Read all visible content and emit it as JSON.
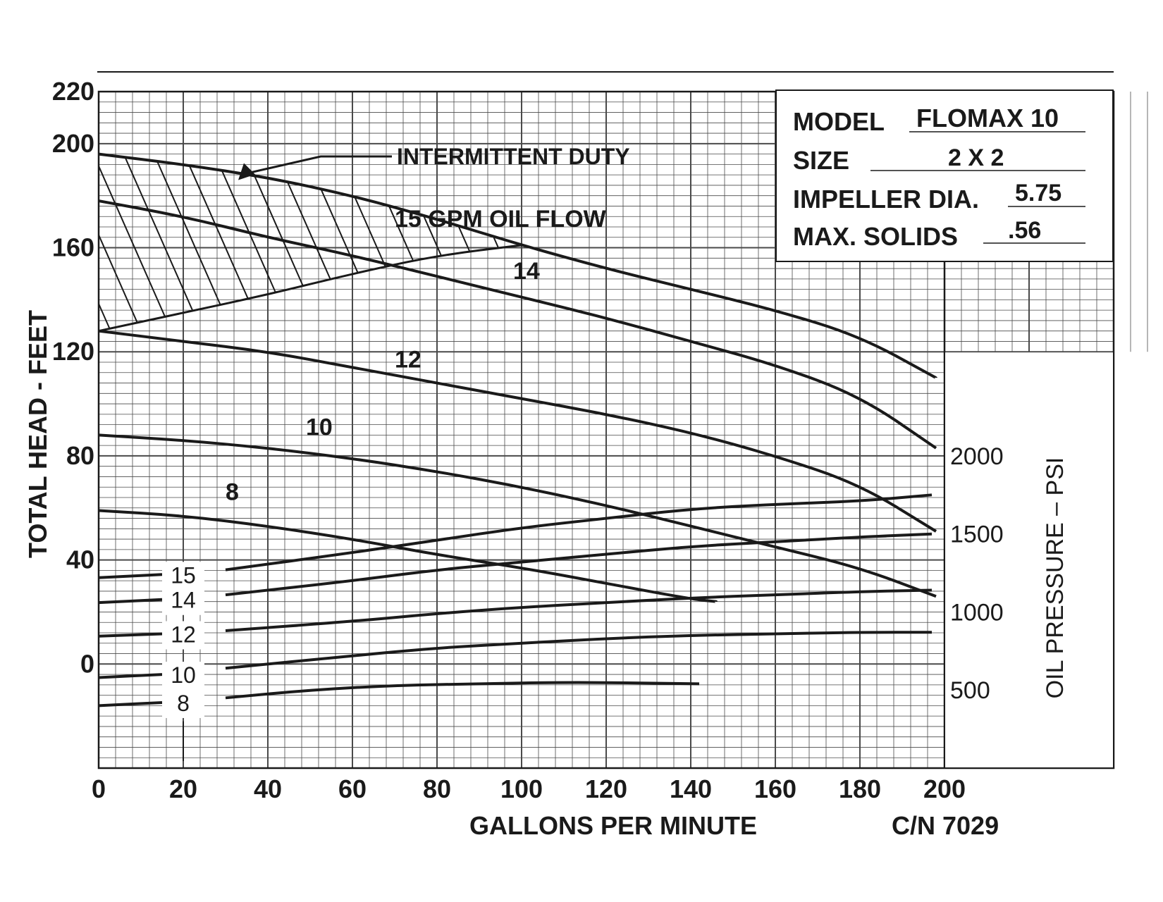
{
  "chart_data": {
    "type": "line",
    "xlabel": "GALLONS PER MINUTE",
    "ylabel": "TOTAL HEAD - FEET",
    "y2label": "OIL PRESSURE – PSI",
    "xlim": [
      0,
      200
    ],
    "ylim": [
      -40,
      220
    ],
    "y2lim": [
      0,
      2500
    ],
    "x_ticks": [
      "0",
      "20",
      "40",
      "60",
      "80",
      "100",
      "120",
      "140",
      "160",
      "180",
      "200"
    ],
    "y_ticks": [
      {
        "value": 0,
        "label": "0"
      },
      {
        "value": 40,
        "label": "40"
      },
      {
        "value": 80,
        "label": "80"
      },
      {
        "value": 120,
        "label": "120"
      },
      {
        "value": 160,
        "label": "160"
      },
      {
        "value": 200,
        "label": "200"
      },
      {
        "value": 220,
        "label": "220"
      }
    ],
    "y2_ticks": [
      {
        "value": 500,
        "label": "500"
      },
      {
        "value": 1000,
        "label": "1000"
      },
      {
        "value": 1500,
        "label": "1500"
      },
      {
        "value": 2000,
        "label": "2000"
      }
    ],
    "grid": true,
    "head_series": [
      {
        "name": "15 GPM OIL FLOW",
        "label_x": 70,
        "label_y": 168,
        "points": [
          [
            0,
            196
          ],
          [
            20,
            192
          ],
          [
            40,
            187
          ],
          [
            60,
            180
          ],
          [
            80,
            171
          ],
          [
            100,
            161
          ],
          [
            120,
            152
          ],
          [
            140,
            144
          ],
          [
            160,
            136
          ],
          [
            180,
            126
          ],
          [
            198,
            110
          ]
        ]
      },
      {
        "name": "14",
        "label_x": 98,
        "label_y": 148,
        "points": [
          [
            0,
            178
          ],
          [
            20,
            172
          ],
          [
            40,
            164
          ],
          [
            60,
            157
          ],
          [
            80,
            149
          ],
          [
            100,
            141
          ],
          [
            120,
            133
          ],
          [
            140,
            124
          ],
          [
            160,
            115
          ],
          [
            180,
            103
          ],
          [
            198,
            83
          ]
        ]
      },
      {
        "name": "12",
        "label_x": 70,
        "label_y": 114,
        "points": [
          [
            0,
            128
          ],
          [
            20,
            124
          ],
          [
            40,
            120
          ],
          [
            60,
            114
          ],
          [
            80,
            108
          ],
          [
            100,
            102
          ],
          [
            120,
            96
          ],
          [
            140,
            89
          ],
          [
            160,
            80
          ],
          [
            180,
            69
          ],
          [
            198,
            51
          ]
        ]
      },
      {
        "name": "10",
        "label_x": 49,
        "label_y": 88,
        "points": [
          [
            0,
            88
          ],
          [
            20,
            86
          ],
          [
            40,
            83
          ],
          [
            60,
            79
          ],
          [
            80,
            74
          ],
          [
            100,
            68
          ],
          [
            120,
            61
          ],
          [
            140,
            53
          ],
          [
            160,
            45
          ],
          [
            180,
            37
          ],
          [
            198,
            26
          ]
        ]
      },
      {
        "name": "8",
        "label_x": 30,
        "label_y": 63,
        "points": [
          [
            0,
            59
          ],
          [
            20,
            57
          ],
          [
            40,
            53
          ],
          [
            60,
            48
          ],
          [
            80,
            42
          ],
          [
            100,
            37
          ],
          [
            120,
            31
          ],
          [
            140,
            25
          ],
          [
            146,
            24
          ]
        ]
      }
    ],
    "pressure_series": [
      {
        "name": "15",
        "points": [
          [
            0,
            1220
          ],
          [
            15,
            1240
          ],
          [
            30,
            1270
          ],
          [
            60,
            1380
          ],
          [
            80,
            1460
          ],
          [
            100,
            1540
          ],
          [
            120,
            1600
          ],
          [
            140,
            1660
          ],
          [
            160,
            1690
          ],
          [
            180,
            1710
          ],
          [
            197,
            1750
          ]
        ]
      },
      {
        "name": "14",
        "points": [
          [
            0,
            1060
          ],
          [
            15,
            1080
          ],
          [
            30,
            1110
          ],
          [
            60,
            1200
          ],
          [
            80,
            1270
          ],
          [
            100,
            1320
          ],
          [
            120,
            1370
          ],
          [
            140,
            1420
          ],
          [
            160,
            1450
          ],
          [
            180,
            1480
          ],
          [
            197,
            1500
          ]
        ]
      },
      {
        "name": "12",
        "points": [
          [
            0,
            845
          ],
          [
            15,
            860
          ],
          [
            30,
            880
          ],
          [
            60,
            940
          ],
          [
            80,
            990
          ],
          [
            100,
            1030
          ],
          [
            120,
            1060
          ],
          [
            140,
            1090
          ],
          [
            160,
            1110
          ],
          [
            180,
            1130
          ],
          [
            197,
            1140
          ]
        ]
      },
      {
        "name": "10",
        "points": [
          [
            0,
            580
          ],
          [
            15,
            600
          ],
          [
            30,
            640
          ],
          [
            60,
            720
          ],
          [
            80,
            770
          ],
          [
            100,
            800
          ],
          [
            120,
            830
          ],
          [
            140,
            850
          ],
          [
            160,
            860
          ],
          [
            180,
            870
          ],
          [
            197,
            870
          ]
        ]
      },
      {
        "name": "8",
        "points": [
          [
            0,
            400
          ],
          [
            15,
            420
          ],
          [
            30,
            450
          ],
          [
            50,
            500
          ],
          [
            70,
            530
          ],
          [
            90,
            540
          ],
          [
            110,
            550
          ],
          [
            130,
            545
          ],
          [
            142,
            540
          ]
        ]
      }
    ],
    "annotations": [
      {
        "text": "INTERMITTENT DUTY",
        "arrow_to_x": 33,
        "arrow_to_y": 186
      },
      {
        "text": "C/N 7029"
      }
    ],
    "shaded_region": {
      "name": "INTERMITTENT DUTY",
      "pattern": "diagonal hatch",
      "upper": [
        [
          0,
          196
        ],
        [
          20,
          192
        ],
        [
          40,
          187
        ],
        [
          60,
          180
        ],
        [
          80,
          171
        ],
        [
          100,
          161
        ]
      ],
      "lower": [
        [
          0,
          128
        ],
        [
          20,
          135
        ],
        [
          40,
          142
        ],
        [
          60,
          150
        ],
        [
          80,
          157
        ],
        [
          100,
          161
        ]
      ]
    }
  },
  "spec_box": {
    "rows": [
      {
        "label": "MODEL",
        "value": "FLOMAX 10"
      },
      {
        "label": "SIZE",
        "value": "2 X 2"
      },
      {
        "label": "IMPELLER DIA.",
        "value": "5.75"
      },
      {
        "label": "MAX. SOLIDS",
        "value": ".56"
      }
    ]
  },
  "colors": {
    "ink": "#1a1a1a",
    "grid": "#4a4a4a",
    "paper": "#ffffff"
  }
}
